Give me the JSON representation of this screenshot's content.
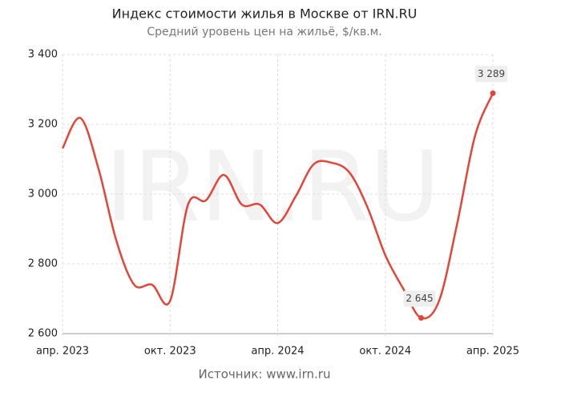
{
  "chart_data": {
    "type": "line",
    "title": "Индекс стоимости жилья в Москве от IRN.RU",
    "subtitle": "Средний уровень цен на жильё, $/кв.м.",
    "watermark": "IRN.RU",
    "source": "Источник: www.irn.ru",
    "categories": [
      "апр. 2023",
      null,
      null,
      null,
      null,
      null,
      "окт. 2023",
      null,
      null,
      null,
      null,
      null,
      "апр. 2024",
      null,
      null,
      null,
      null,
      null,
      "окт. 2024",
      null,
      null,
      null,
      null,
      null,
      "апр. 2025"
    ],
    "series": [
      {
        "name": "Индекс",
        "color": "#e2453a",
        "values": [
          3131,
          3218,
          3074,
          2867,
          2740,
          2740,
          2694,
          2970,
          2982,
          3055,
          2970,
          2970,
          2917,
          2993,
          3085,
          3090,
          3062,
          2963,
          2825,
          2729,
          2645,
          2694,
          2913,
          3166,
          3289
        ],
        "value_labels": [
          null,
          null,
          null,
          null,
          null,
          null,
          null,
          null,
          null,
          null,
          null,
          null,
          null,
          null,
          null,
          null,
          null,
          null,
          null,
          null,
          "2 645",
          null,
          null,
          null,
          "3 289"
        ]
      }
    ],
    "ylim": [
      2600,
      3400
    ],
    "yticks": [
      {
        "value": 2600,
        "label": "2 600"
      },
      {
        "value": 2800,
        "label": "2 800"
      },
      {
        "value": 3000,
        "label": "3 000"
      },
      {
        "value": 3200,
        "label": "3 200"
      },
      {
        "value": 3400,
        "label": "3 400"
      }
    ],
    "grid": true
  }
}
